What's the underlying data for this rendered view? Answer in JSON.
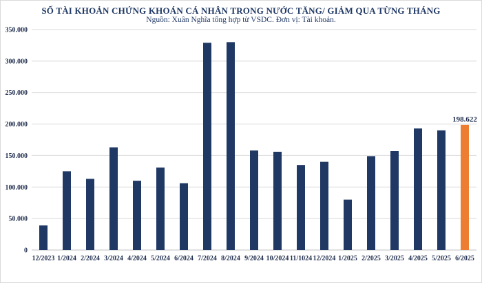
{
  "chart_data": {
    "type": "bar",
    "title": "SỐ TÀI KHOẢN CHỨNG KHOÁN CÁ NHÂN TRONG NƯỚC TĂNG/ GIẢM QUA TỪNG THÁNG",
    "subtitle": "Nguồn: Xuân Nghĩa tổng hợp từ VSDC. Đơn vị: Tài khoản.",
    "xlabel": "",
    "ylabel": "",
    "ylim": [
      0,
      350000
    ],
    "yticks": [
      0,
      50000,
      100000,
      150000,
      200000,
      250000,
      300000,
      350000
    ],
    "ytick_labels": [
      "0",
      "50.000",
      "100.000",
      "150.000",
      "200.000",
      "250.000",
      "300.000",
      "350.000"
    ],
    "grid": true,
    "categories": [
      "12/2023",
      "1/2024",
      "2/2024",
      "3/2024",
      "4/2024",
      "5/2024",
      "6/2024",
      "7/2024",
      "8/2024",
      "9/2024",
      "10/2024",
      "11/1024",
      "12/2024",
      "1/2025",
      "2/2025",
      "3/2025",
      "4/2025",
      "5/2025",
      "6/2025"
    ],
    "values": [
      39000,
      125000,
      113000,
      163000,
      110000,
      131000,
      106000,
      329000,
      330000,
      158000,
      156000,
      135000,
      140000,
      80000,
      149000,
      157000,
      193000,
      190000,
      198622
    ],
    "colors": {
      "bar": "#1f3864",
      "highlight": "#ed7d31",
      "grid": "#d9d9d9",
      "text": "#1f2d4d"
    },
    "highlight_index": 18,
    "data_labels": [
      {
        "index": 18,
        "text": "198.622"
      }
    ]
  }
}
